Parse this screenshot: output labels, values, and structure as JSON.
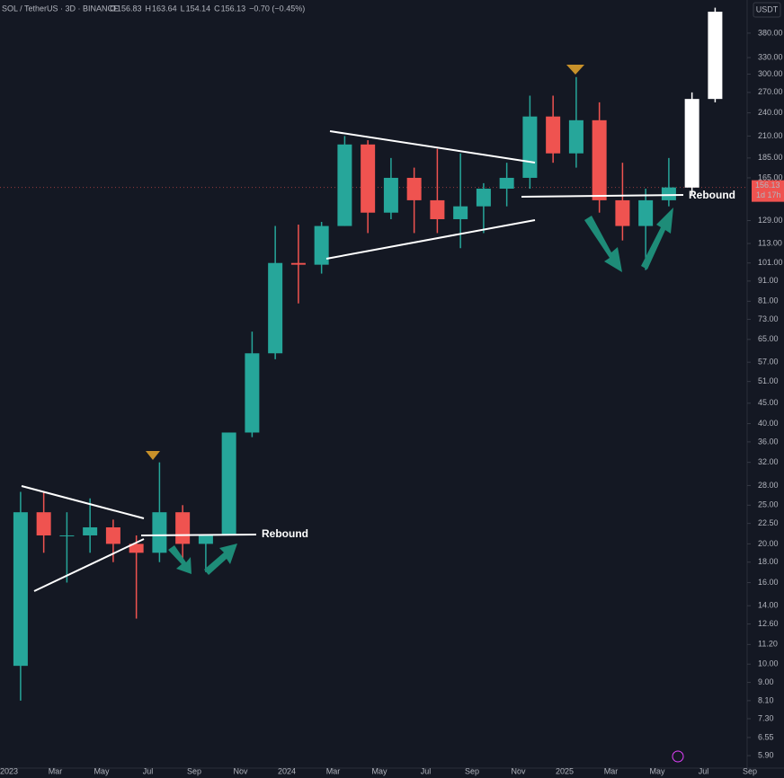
{
  "header": {
    "symbol": "SOL / TetherUS · 3D · BINANCE",
    "ohlc": [
      {
        "label": "O",
        "value": "156.83"
      },
      {
        "label": "H",
        "value": "163.64"
      },
      {
        "label": "L",
        "value": "154.14"
      },
      {
        "label": "C",
        "value": "156.13"
      }
    ],
    "change": "−0.70 (−0.45%)"
  },
  "chart_data": {
    "type": "candlestick",
    "currency": "USDT",
    "log_scale": true,
    "up_color": "#26a69a",
    "down_color": "#ef5350",
    "x": [
      "2023-01",
      "2023-02",
      "2023-03",
      "2023-04",
      "2023-05",
      "2023-06",
      "2023-07",
      "2023-08",
      "2023-09",
      "2023-10",
      "2023-11",
      "2023-12",
      "2024-01",
      "2024-02",
      "2024-03",
      "2024-04",
      "2024-05",
      "2024-06",
      "2024-07",
      "2024-08",
      "2024-09",
      "2024-10",
      "2024-11",
      "2024-12",
      "2025-01",
      "2025-02",
      "2025-03",
      "2025-04",
      "2025-05"
    ],
    "open": [
      9.9,
      24,
      21,
      21,
      22,
      20,
      19,
      24,
      20,
      21,
      38,
      60,
      101,
      100,
      125,
      200,
      135,
      165,
      145,
      130,
      140,
      155,
      165,
      235,
      190,
      230,
      145,
      125,
      145
    ],
    "high": [
      27,
      27,
      24,
      26,
      23,
      21,
      32,
      25,
      21,
      38,
      68,
      125,
      126,
      128,
      210,
      205,
      185,
      175,
      195,
      190,
      160,
      180,
      265,
      265,
      295,
      255,
      180,
      155,
      185
    ],
    "low": [
      8.1,
      19,
      16,
      19,
      18,
      13,
      18,
      18,
      17,
      21,
      37,
      58,
      80,
      95,
      125,
      120,
      130,
      120,
      120,
      110,
      120,
      140,
      155,
      180,
      175,
      135,
      115,
      97,
      140
    ],
    "close": [
      24,
      21,
      21,
      22,
      20,
      19,
      24,
      20,
      21,
      38,
      60,
      101,
      100,
      125,
      200,
      135,
      165,
      145,
      130,
      140,
      155,
      165,
      235,
      190,
      230,
      145,
      125,
      145,
      156.13
    ],
    "projection": {
      "color": "#ffffff",
      "x": [
        "2025-06",
        "2025-07"
      ],
      "open": [
        156,
        260
      ],
      "high": [
        270,
        440
      ],
      "low": [
        150,
        255
      ],
      "close": [
        260,
        430
      ]
    },
    "last_price": 156.13,
    "last_price_label": "156.13",
    "countdown": "1d 17h",
    "annotations": [
      "Rebound",
      "Rebound"
    ],
    "ylim": [
      5.49,
      460
    ],
    "yticks": [
      {
        "value": 380,
        "label": "380.00"
      },
      {
        "value": 330,
        "label": "330.00"
      },
      {
        "value": 300,
        "label": "300.00"
      },
      {
        "value": 270,
        "label": "270.00"
      },
      {
        "value": 240,
        "label": "240.00"
      },
      {
        "value": 210,
        "label": "210.00"
      },
      {
        "value": 185,
        "label": "185.00"
      },
      {
        "value": 165,
        "label": "165.00"
      },
      {
        "value": 129,
        "label": "129.00"
      },
      {
        "value": 113,
        "label": "113.00"
      },
      {
        "value": 101,
        "label": "101.00"
      },
      {
        "value": 91,
        "label": "91.00"
      },
      {
        "value": 81,
        "label": "81.00"
      },
      {
        "value": 73,
        "label": "73.00"
      },
      {
        "value": 65,
        "label": "65.00"
      },
      {
        "value": 57,
        "label": "57.00"
      },
      {
        "value": 51,
        "label": "51.00"
      },
      {
        "value": 45,
        "label": "45.00"
      },
      {
        "value": 40,
        "label": "40.00"
      },
      {
        "value": 36,
        "label": "36.00"
      },
      {
        "value": 32,
        "label": "32.00"
      },
      {
        "value": 28,
        "label": "28.00"
      },
      {
        "value": 25,
        "label": "25.00"
      },
      {
        "value": 22.5,
        "label": "22.50"
      },
      {
        "value": 20,
        "label": "20.00"
      },
      {
        "value": 18,
        "label": "18.00"
      },
      {
        "value": 16,
        "label": "16.00"
      },
      {
        "value": 14,
        "label": "14.00"
      },
      {
        "value": 12.6,
        "label": "12.60"
      },
      {
        "value": 11.2,
        "label": "11.20"
      },
      {
        "value": 10,
        "label": "10.00"
      },
      {
        "value": 9,
        "label": "9.00"
      },
      {
        "value": 8.1,
        "label": "8.10"
      },
      {
        "value": 7.3,
        "label": "7.30"
      },
      {
        "value": 6.55,
        "label": "6.55"
      },
      {
        "value": 5.9,
        "label": "5.90"
      }
    ],
    "xticks": [
      {
        "value": "2023-01",
        "label": "2023"
      },
      {
        "value": "2023-03",
        "label": "Mar"
      },
      {
        "value": "2023-05",
        "label": "May"
      },
      {
        "value": "2023-07",
        "label": "Jul"
      },
      {
        "value": "2023-09",
        "label": "Sep"
      },
      {
        "value": "2023-11",
        "label": "Nov"
      },
      {
        "value": "2024-01",
        "label": "2024"
      },
      {
        "value": "2024-03",
        "label": "Mar"
      },
      {
        "value": "2024-05",
        "label": "May"
      },
      {
        "value": "2024-07",
        "label": "Jul"
      },
      {
        "value": "2024-09",
        "label": "Sep"
      },
      {
        "value": "2024-11",
        "label": "Nov"
      },
      {
        "value": "2025-01",
        "label": "2025"
      },
      {
        "value": "2025-03",
        "label": "Mar"
      },
      {
        "value": "2025-05",
        "label": "May"
      },
      {
        "value": "2025-07",
        "label": "Jul"
      },
      {
        "value": "2025-09",
        "label": "Sep"
      }
    ]
  }
}
